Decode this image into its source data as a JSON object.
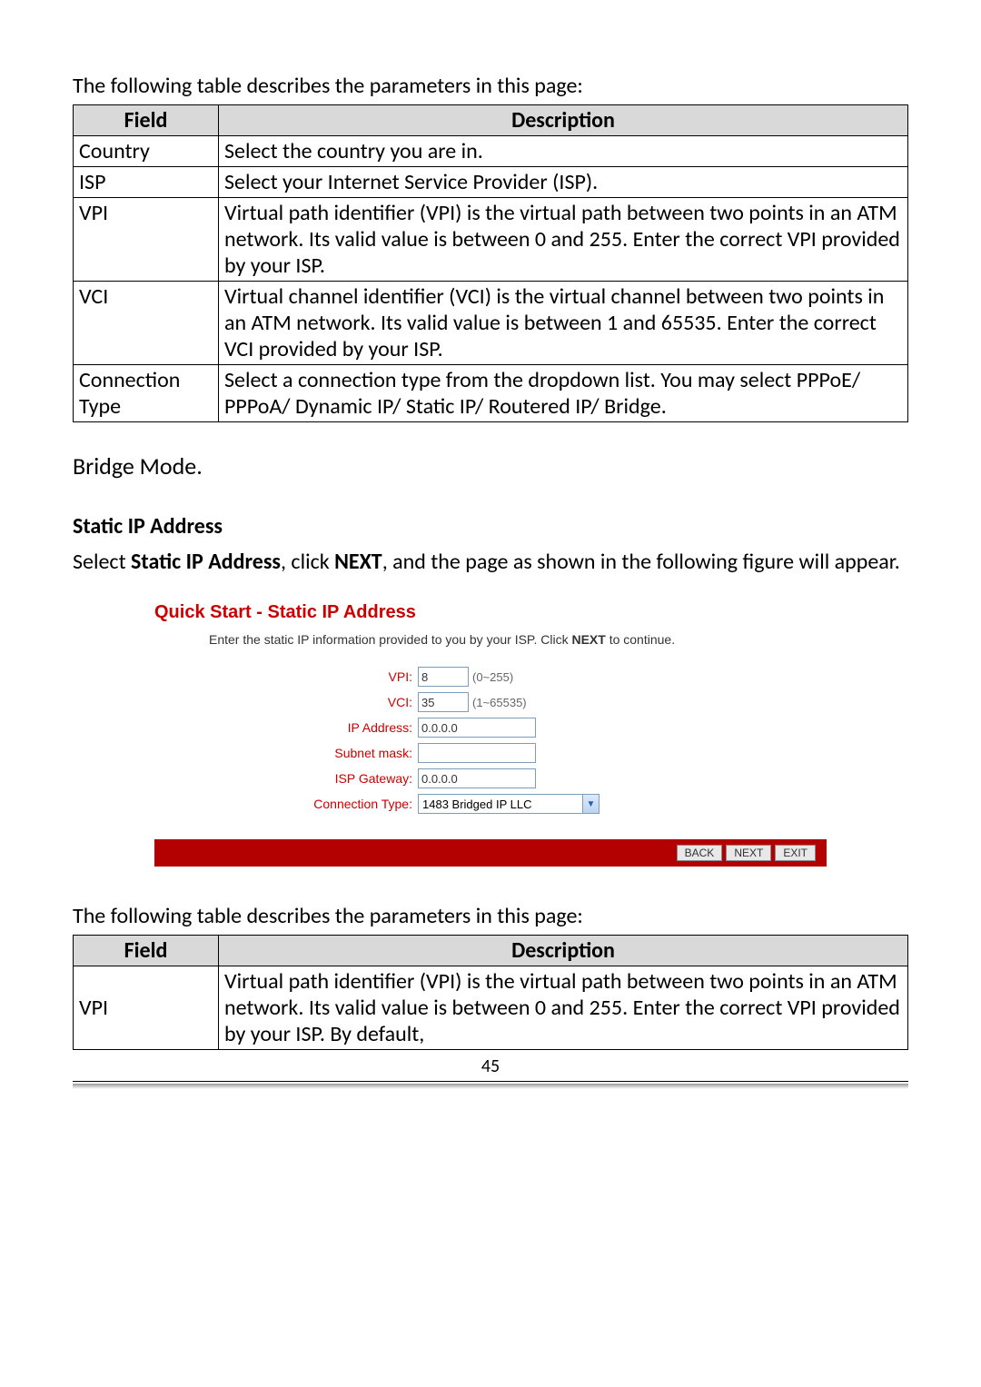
{
  "intro1": "The following table describes the parameters in this page:",
  "table1": {
    "headers": [
      "Field",
      "Description"
    ],
    "rows": [
      {
        "field": "Country",
        "desc": "Select the country you are in."
      },
      {
        "field": "ISP",
        "desc": "Select your Internet Service Provider (ISP)."
      },
      {
        "field": "VPI",
        "desc": "Virtual path identifier (VPI) is the virtual path between two points in an ATM network. Its valid value is between 0 and 255. Enter the correct VPI provided by your ISP."
      },
      {
        "field": "VCI",
        "desc": "Virtual channel identifier (VCI) is the virtual channel between two points in an ATM network. Its valid value is between 1 and 65535. Enter the correct VCI provided by your ISP."
      },
      {
        "field": "Connection Type",
        "desc": "Select a connection type from the dropdown list. You may select PPPoE/ PPPoA/ Dynamic IP/ Static IP/ Routered IP/ Bridge."
      }
    ]
  },
  "bridge_mode": "Bridge Mode.",
  "static_heading": "Static IP Address",
  "static_desc_pre": "Select ",
  "static_desc_b1": "Static IP Address",
  "static_desc_mid": ", click ",
  "static_desc_b2": "NEXT",
  "static_desc_post": ", and the page as shown in the following figure will appear.",
  "qs": {
    "title": "Quick Start - Static IP Address",
    "sub_pre": "Enter the static IP information provided to you by your ISP. Click ",
    "sub_b": "NEXT",
    "sub_post": " to continue.",
    "label_color": "#cc0000",
    "bar_color": "#b30000",
    "rows": {
      "vpi": {
        "label": "VPI:",
        "value": "8",
        "hint": "(0~255)"
      },
      "vci": {
        "label": "VCI:",
        "value": "35",
        "hint": "(1~65535)"
      },
      "ip": {
        "label": "IP Address:",
        "value": "0.0.0.0"
      },
      "mask": {
        "label": "Subnet mask:",
        "value": ""
      },
      "gw": {
        "label": "ISP Gateway:",
        "value": "0.0.0.0"
      },
      "ct": {
        "label": "Connection Type:",
        "value": "1483 Bridged IP LLC"
      }
    },
    "buttons": {
      "back": "BACK",
      "next": "NEXT",
      "exit": "EXIT"
    }
  },
  "intro2": "The following table describes the parameters in this page:",
  "table2": {
    "headers": [
      "Field",
      "Description"
    ],
    "rows": [
      {
        "field": "VPI",
        "desc": "Virtual path identifier (VPI) is the virtual path between two points in an ATM network. Its valid value is between 0 and 255. Enter the correct VPI provided by your ISP. By default,"
      }
    ]
  },
  "page_number": "45"
}
